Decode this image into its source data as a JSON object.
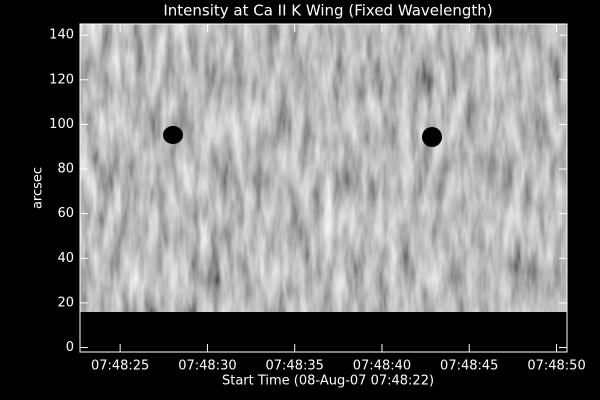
{
  "chart_data": {
    "type": "image",
    "title": "Intensity at Ca II K Wing (Fixed Wavelength)",
    "x_label": "Start Time (08-Aug-07 07:48:22)",
    "y_label": "arcsec",
    "xlim": [
      22.7,
      50.6
    ],
    "xticks": [
      {
        "value": 25,
        "label": "07:48:25"
      },
      {
        "value": 30,
        "label": "07:48:30"
      },
      {
        "value": 35,
        "label": "07:48:35"
      },
      {
        "value": 40,
        "label": "07:48:40"
      },
      {
        "value": 45,
        "label": "07:48:45"
      },
      {
        "value": 50,
        "label": "07:48:50"
      }
    ],
    "ylim": [
      -2,
      145
    ],
    "yticks": [
      0,
      20,
      40,
      60,
      80,
      100,
      120,
      140
    ],
    "colormap": "gray"
  }
}
